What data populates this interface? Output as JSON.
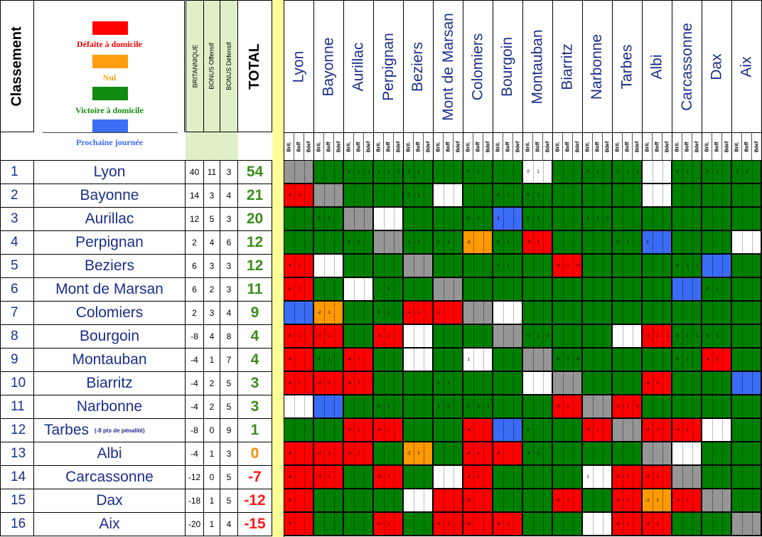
{
  "header": {
    "classement": "Classement",
    "legend": [
      {
        "label": "Défaite à domicile",
        "color": "#ff0000"
      },
      {
        "label": "Nul",
        "color": "#ffa010"
      },
      {
        "label": "Victoire à domicile",
        "color": "#138a13"
      },
      {
        "label": "Prochaine journée",
        "color": "#3a6ef5"
      }
    ],
    "brit": "BRITANNIQUE",
    "boff": "BONUS Offensif",
    "bdef": "BONUS Défensif",
    "total": "TOTAL",
    "sub": [
      "Brit.",
      "Boff",
      "Bdef"
    ]
  },
  "colors": {
    "R": "#ff0000",
    "G": "#008000",
    "O": "#ff9900",
    "B": "#3b6cf5",
    "W": "#ffffff",
    "X": "#969696"
  },
  "teams": [
    {
      "rank": "1",
      "name": "Lyon",
      "note": "",
      "brit": "40",
      "boff": "11",
      "bdef": "3",
      "total": "54",
      "tcls": "green-num",
      "row": "XGGGGGGGWGGGWGGG"
    },
    {
      "rank": "2",
      "name": "Bayonne",
      "note": "",
      "brit": "14",
      "boff": "3",
      "bdef": "4",
      "total": "21",
      "tcls": "green-num",
      "row": "RXGGGWGGGGGGWGGG"
    },
    {
      "rank": "3",
      "name": "Aurillac",
      "note": "",
      "brit": "12",
      "boff": "5",
      "bdef": "3",
      "total": "20",
      "tcls": "green-num",
      "row": "GGXWGGGBGGGGGGGG"
    },
    {
      "rank": "4",
      "name": "Perpignan",
      "note": "",
      "brit": "2",
      "boff": "4",
      "bdef": "6",
      "total": "12",
      "tcls": "green-num",
      "row": "GGGXGGOGRGGGBGGW"
    },
    {
      "rank": "5",
      "name": "Beziers",
      "note": "",
      "brit": "6",
      "boff": "3",
      "bdef": "3",
      "total": "12",
      "tcls": "green-num",
      "row": "RWGGXGGGGRGGGGBG"
    },
    {
      "rank": "6",
      "name": "Mont de Marsan",
      "note": "",
      "brit": "6",
      "boff": "2",
      "bdef": "3",
      "total": "11",
      "tcls": "green-num",
      "row": "RGWGGXGGGGGGGBGG"
    },
    {
      "rank": "7",
      "name": "Colomiers",
      "note": "",
      "brit": "2",
      "boff": "3",
      "bdef": "4",
      "total": "9",
      "tcls": "green-num",
      "row": "BOGGRRXWGGGGGGGG"
    },
    {
      "rank": "8",
      "name": "Bourgoin",
      "note": "",
      "brit": "-8",
      "boff": "4",
      "bdef": "8",
      "total": "4",
      "tcls": "green-num",
      "row": "RRGRWGGXGGGWRGGG"
    },
    {
      "rank": "9",
      "name": "Montauban",
      "note": "",
      "brit": "-4",
      "boff": "1",
      "bdef": "7",
      "total": "4",
      "tcls": "green-num",
      "row": "RGRGWGWGXGGGGGRG"
    },
    {
      "rank": "10",
      "name": "Biarritz",
      "note": "",
      "brit": "-4",
      "boff": "2",
      "bdef": "5",
      "total": "3",
      "tcls": "green-num",
      "row": "RRRGGGGGWXGGRGGB"
    },
    {
      "rank": "11",
      "name": "Narbonne",
      "note": "",
      "brit": "-4",
      "boff": "2",
      "bdef": "5",
      "total": "3",
      "tcls": "green-num",
      "row": "WBGGGGGGGRXRGGGG"
    },
    {
      "rank": "12",
      "name": "Tarbes",
      "note": "(-8 pts de pénalité)",
      "brit": "-8",
      "boff": "0",
      "bdef": "9",
      "total": "1",
      "tcls": "green-num",
      "row": "GGRRGGRBGGRXRRWG"
    },
    {
      "rank": "13",
      "name": "Albi",
      "note": "",
      "brit": "-4",
      "boff": "1",
      "bdef": "3",
      "total": "0",
      "tcls": "orange-num",
      "row": "RRRGOGRRGGGGXWGG"
    },
    {
      "rank": "14",
      "name": "Carcassonne",
      "note": "",
      "brit": "-12",
      "boff": "0",
      "bdef": "5",
      "total": "-7",
      "tcls": "red-num",
      "row": "RRGRGWRGGGWRRXGG"
    },
    {
      "rank": "15",
      "name": "Dax",
      "note": "",
      "brit": "-18",
      "boff": "1",
      "bdef": "5",
      "total": "-12",
      "tcls": "red-num",
      "row": "RGGGWRRGGRGRORXG"
    },
    {
      "rank": "16",
      "name": "Aix",
      "note": "",
      "brit": "-20",
      "boff": "1",
      "bdef": "4",
      "total": "-15",
      "tcls": "red-num",
      "row": "RGGRGRRRGGWRRGGX"
    }
  ],
  "columns": [
    "Lyon",
    "Bayonne",
    "Aurillac",
    "Perpignan",
    "Beziers",
    "Mont de Marsan",
    "Colomiers",
    "Bourgoin",
    "Montauban",
    "Biarritz",
    "Narbonne",
    "Tarbes",
    "Albi",
    "Carcassonne",
    "Dax",
    "Aix"
  ],
  "cell_values": {
    "0-2": "0 1 1",
    "0-3": "1 1 0",
    "0-4": "0 1",
    "0-6": "0 1",
    "0-8": "0 1",
    "0-10": "0 1",
    "0-11": "0 1 1",
    "0-13": "0 1",
    "0-14": "0 1",
    "0-15": "0 2",
    "1-0": "-4 -2",
    "1-4": "0 1",
    "1-7": "0 1",
    "1-8": "0 1",
    "2-1": "0 1",
    "2-6": "0 1",
    "2-7": "1",
    "2-8": "0 1",
    "2-10": "1 1 0",
    "3-2": "0 1",
    "3-4": "1 1",
    "3-5": "0 1",
    "3-6": "-2",
    "3-7": "0 1",
    "3-8": "-4 1",
    "3-11": "0 1",
    "3-12": "1",
    "4-0": "-4 1",
    "4-7": "0 1",
    "4-9": "-4 1 0",
    "4-13": "0 1 1",
    "5-0": "-4 1",
    "5-3": "1 0",
    "5-14": "0 1",
    "6-1": "-2 1",
    "6-3": "0 1",
    "6-4": "-4 1",
    "6-5": "-2",
    "7-0": "-4 1",
    "7-1": "-4 1",
    "7-3": "-4 1",
    "7-8": "0 1 0",
    "7-12": "-4 1 1",
    "7-13": "0 1 1",
    "7-14": "0 1",
    "8-0": "-4",
    "8-1": "0 1",
    "8-2": "-4 1",
    "8-6": "1",
    "8-9": "0 1 0",
    "8-13": "0 1",
    "8-14": "-4 1",
    "9-0": "-4 1",
    "9-1": "-4 1",
    "9-2": "-4 1",
    "9-5": "0 1",
    "9-12": "-4 1",
    "10-3": "0 1",
    "10-5": "1 0",
    "10-6": "0 1 1",
    "10-9": "-4 1",
    "10-11": "-4 1 0",
    "11-2": "-4 1",
    "11-3": "-4 1",
    "11-6": "-4",
    "11-8": "0",
    "11-10": "-4 1",
    "11-12": "-4 -2",
    "11-13": "-4 1",
    "12-0": "-4",
    "12-1": "-4 1",
    "12-2": "-4 1",
    "12-4": "-2 1",
    "12-6": "-4 1",
    "12-7": "-4",
    "12-8": "-4 1",
    "13-0": "-4",
    "13-1": "-4 1",
    "13-3": "-4 1",
    "13-6": "-4 1",
    "13-10": "1",
    "13-11": "-4 1",
    "13-12": "-4 1",
    "14-0": "-4",
    "14-6": "-4",
    "14-9": "-4 1",
    "14-11": "-4 1",
    "14-12": "-2 1",
    "14-13": "-4 1",
    "15-0": "-4",
    "15-3": "-4 1",
    "15-5": "-4 2",
    "15-6": "-4",
    "15-7": "-4 1",
    "15-11": "-4 1",
    "15-12": "-4 1"
  }
}
